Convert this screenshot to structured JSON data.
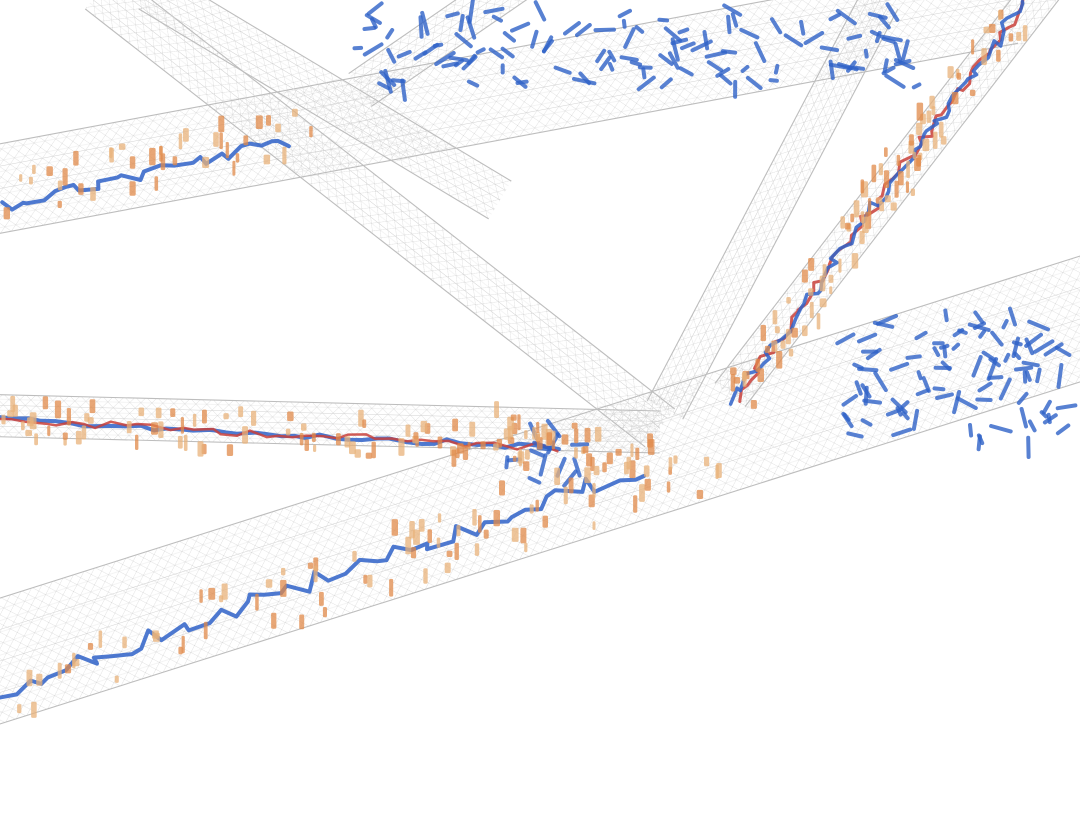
{
  "scene": {
    "background": "#ffffff",
    "mesh_color": "#bdbdbd",
    "path_blue": "#2f62c8",
    "path_red": "#c9403a",
    "particle_orange": "#e08a4a",
    "particle_tan": "#e8b27a"
  },
  "tubes": [
    {
      "id": "tube-top-horizontal"
    },
    {
      "id": "tube-upper-left-diagonal"
    },
    {
      "id": "tube-upper-crossing"
    },
    {
      "id": "tube-central-descending"
    },
    {
      "id": "tube-right-vertical"
    },
    {
      "id": "tube-right-steep"
    },
    {
      "id": "tube-mid-left"
    },
    {
      "id": "tube-bottom-main"
    }
  ]
}
